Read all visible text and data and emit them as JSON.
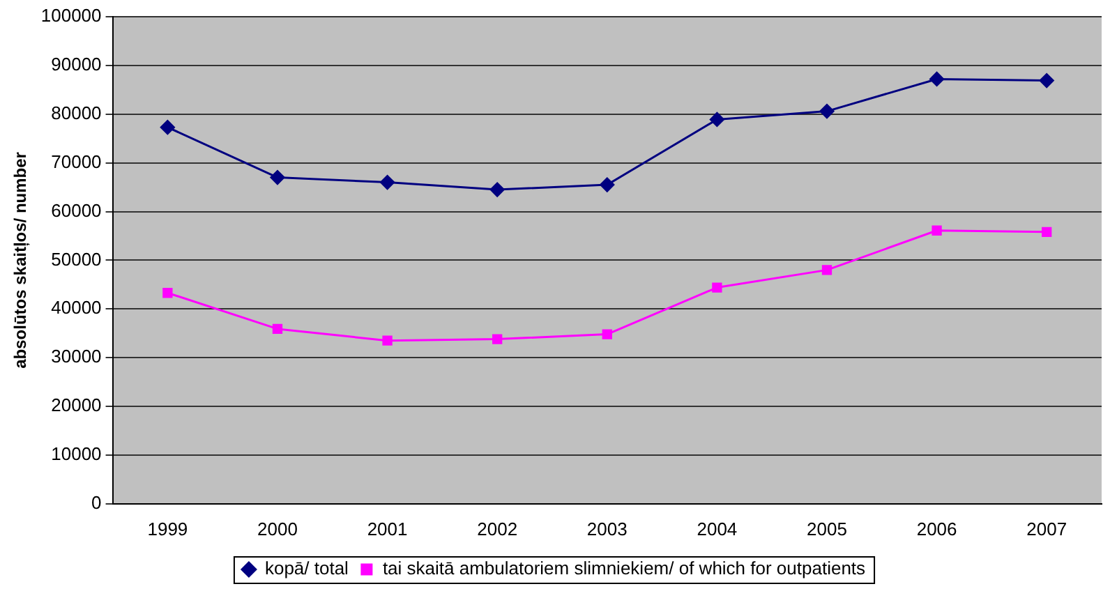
{
  "chart_data": {
    "type": "line",
    "ylabel": "absolūtos skaitļos/ number",
    "categories": [
      "1999",
      "2000",
      "2001",
      "2002",
      "2003",
      "2004",
      "2005",
      "2006",
      "2007"
    ],
    "series": [
      {
        "name": "kopā/ total",
        "color": "#000080",
        "marker": "diamond",
        "values": [
          77300,
          67000,
          66000,
          64500,
          65500,
          78900,
          80600,
          87200,
          86900
        ]
      },
      {
        "name": "tai skaitā ambulatoriem slimniekiem/ of which for outpatients",
        "color": "#ff00ff",
        "marker": "square",
        "values": [
          43300,
          35900,
          33500,
          33800,
          34800,
          44400,
          48000,
          56100,
          55800
        ]
      }
    ],
    "ylim": [
      0,
      100000
    ],
    "yticks": [
      0,
      10000,
      20000,
      30000,
      40000,
      50000,
      60000,
      70000,
      80000,
      90000,
      100000
    ],
    "grid": "y",
    "legend": "bottom",
    "line_style": "solid"
  }
}
